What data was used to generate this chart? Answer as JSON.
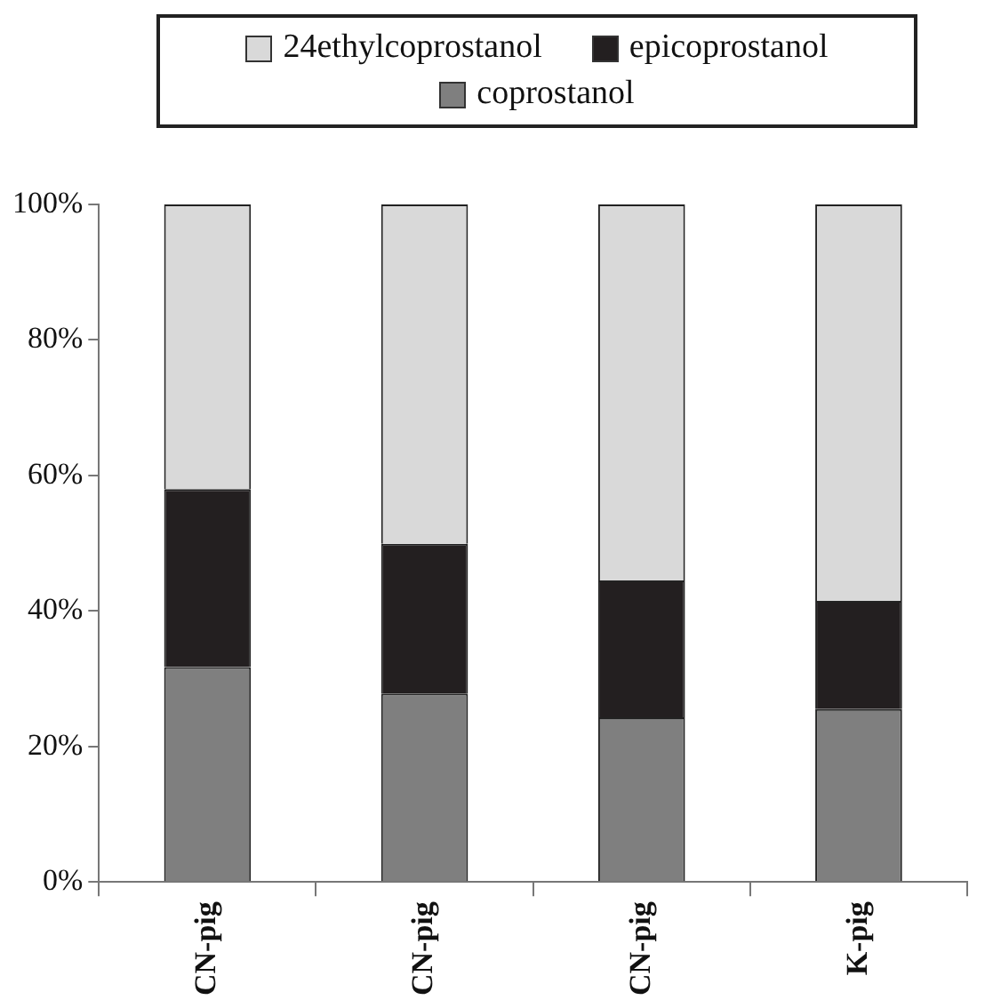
{
  "chart_data": {
    "type": "bar",
    "stacked": true,
    "categories": [
      "CN-pig",
      "CN-pig",
      "CN-pig",
      "K-pig"
    ],
    "series": [
      {
        "name": "coprostanol",
        "color": "#7f7f7f",
        "values": [
          31.7,
          27.8,
          24.3,
          25.5
        ]
      },
      {
        "name": "epicoprostanol",
        "color": "#231f20",
        "values": [
          26.3,
          22.1,
          20.2,
          16.0
        ]
      },
      {
        "name": "24ethylcoprostanol",
        "color": "#d9d9d9",
        "values": [
          42.0,
          50.1,
          55.5,
          58.5
        ]
      }
    ],
    "ylim": [
      0,
      100
    ],
    "yticks": [
      {
        "value": 0,
        "label": "0%"
      },
      {
        "value": 20,
        "label": "20%"
      },
      {
        "value": 40,
        "label": "40%"
      },
      {
        "value": 60,
        "label": "60%"
      },
      {
        "value": 80,
        "label": "80%"
      },
      {
        "value": 100,
        "label": "100%"
      }
    ],
    "grid": false,
    "legend": "top"
  }
}
